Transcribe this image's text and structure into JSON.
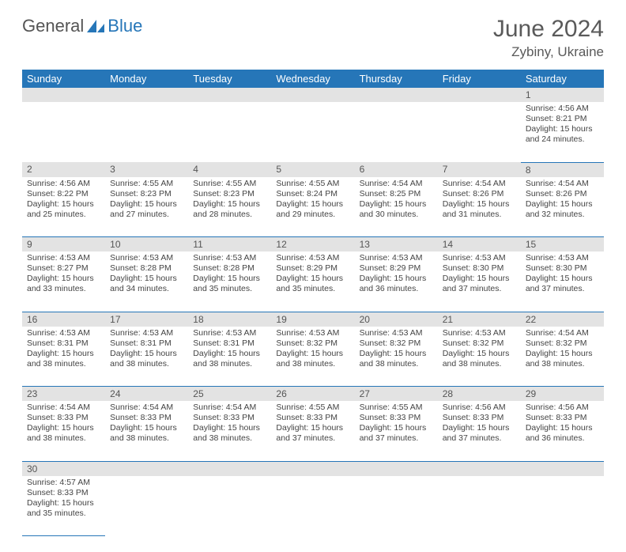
{
  "logo": {
    "general": "General",
    "blue": "Blue"
  },
  "title": "June 2024",
  "location": "Zybiny, Ukraine",
  "dayHeaders": [
    "Sunday",
    "Monday",
    "Tuesday",
    "Wednesday",
    "Thursday",
    "Friday",
    "Saturday"
  ],
  "colors": {
    "headerBg": "#2676b8",
    "headerText": "#ffffff",
    "dayRowBg": "#e3e3e3",
    "borderColor": "#2676b8",
    "titleColor": "#5a5a5a",
    "bodyText": "#444444"
  },
  "weeks": [
    [
      {
        "n": "",
        "sr": "",
        "ss": "",
        "dl": ""
      },
      {
        "n": "",
        "sr": "",
        "ss": "",
        "dl": ""
      },
      {
        "n": "",
        "sr": "",
        "ss": "",
        "dl": ""
      },
      {
        "n": "",
        "sr": "",
        "ss": "",
        "dl": ""
      },
      {
        "n": "",
        "sr": "",
        "ss": "",
        "dl": ""
      },
      {
        "n": "",
        "sr": "",
        "ss": "",
        "dl": ""
      },
      {
        "n": "1",
        "sr": "4:56 AM",
        "ss": "8:21 PM",
        "dl": "15 hours and 24 minutes."
      }
    ],
    [
      {
        "n": "2",
        "sr": "4:56 AM",
        "ss": "8:22 PM",
        "dl": "15 hours and 25 minutes."
      },
      {
        "n": "3",
        "sr": "4:55 AM",
        "ss": "8:23 PM",
        "dl": "15 hours and 27 minutes."
      },
      {
        "n": "4",
        "sr": "4:55 AM",
        "ss": "8:23 PM",
        "dl": "15 hours and 28 minutes."
      },
      {
        "n": "5",
        "sr": "4:55 AM",
        "ss": "8:24 PM",
        "dl": "15 hours and 29 minutes."
      },
      {
        "n": "6",
        "sr": "4:54 AM",
        "ss": "8:25 PM",
        "dl": "15 hours and 30 minutes."
      },
      {
        "n": "7",
        "sr": "4:54 AM",
        "ss": "8:26 PM",
        "dl": "15 hours and 31 minutes."
      },
      {
        "n": "8",
        "sr": "4:54 AM",
        "ss": "8:26 PM",
        "dl": "15 hours and 32 minutes."
      }
    ],
    [
      {
        "n": "9",
        "sr": "4:53 AM",
        "ss": "8:27 PM",
        "dl": "15 hours and 33 minutes."
      },
      {
        "n": "10",
        "sr": "4:53 AM",
        "ss": "8:28 PM",
        "dl": "15 hours and 34 minutes."
      },
      {
        "n": "11",
        "sr": "4:53 AM",
        "ss": "8:28 PM",
        "dl": "15 hours and 35 minutes."
      },
      {
        "n": "12",
        "sr": "4:53 AM",
        "ss": "8:29 PM",
        "dl": "15 hours and 35 minutes."
      },
      {
        "n": "13",
        "sr": "4:53 AM",
        "ss": "8:29 PM",
        "dl": "15 hours and 36 minutes."
      },
      {
        "n": "14",
        "sr": "4:53 AM",
        "ss": "8:30 PM",
        "dl": "15 hours and 37 minutes."
      },
      {
        "n": "15",
        "sr": "4:53 AM",
        "ss": "8:30 PM",
        "dl": "15 hours and 37 minutes."
      }
    ],
    [
      {
        "n": "16",
        "sr": "4:53 AM",
        "ss": "8:31 PM",
        "dl": "15 hours and 38 minutes."
      },
      {
        "n": "17",
        "sr": "4:53 AM",
        "ss": "8:31 PM",
        "dl": "15 hours and 38 minutes."
      },
      {
        "n": "18",
        "sr": "4:53 AM",
        "ss": "8:31 PM",
        "dl": "15 hours and 38 minutes."
      },
      {
        "n": "19",
        "sr": "4:53 AM",
        "ss": "8:32 PM",
        "dl": "15 hours and 38 minutes."
      },
      {
        "n": "20",
        "sr": "4:53 AM",
        "ss": "8:32 PM",
        "dl": "15 hours and 38 minutes."
      },
      {
        "n": "21",
        "sr": "4:53 AM",
        "ss": "8:32 PM",
        "dl": "15 hours and 38 minutes."
      },
      {
        "n": "22",
        "sr": "4:54 AM",
        "ss": "8:32 PM",
        "dl": "15 hours and 38 minutes."
      }
    ],
    [
      {
        "n": "23",
        "sr": "4:54 AM",
        "ss": "8:33 PM",
        "dl": "15 hours and 38 minutes."
      },
      {
        "n": "24",
        "sr": "4:54 AM",
        "ss": "8:33 PM",
        "dl": "15 hours and 38 minutes."
      },
      {
        "n": "25",
        "sr": "4:54 AM",
        "ss": "8:33 PM",
        "dl": "15 hours and 38 minutes."
      },
      {
        "n": "26",
        "sr": "4:55 AM",
        "ss": "8:33 PM",
        "dl": "15 hours and 37 minutes."
      },
      {
        "n": "27",
        "sr": "4:55 AM",
        "ss": "8:33 PM",
        "dl": "15 hours and 37 minutes."
      },
      {
        "n": "28",
        "sr": "4:56 AM",
        "ss": "8:33 PM",
        "dl": "15 hours and 37 minutes."
      },
      {
        "n": "29",
        "sr": "4:56 AM",
        "ss": "8:33 PM",
        "dl": "15 hours and 36 minutes."
      }
    ],
    [
      {
        "n": "30",
        "sr": "4:57 AM",
        "ss": "8:33 PM",
        "dl": "15 hours and 35 minutes."
      },
      {
        "n": "",
        "sr": "",
        "ss": "",
        "dl": ""
      },
      {
        "n": "",
        "sr": "",
        "ss": "",
        "dl": ""
      },
      {
        "n": "",
        "sr": "",
        "ss": "",
        "dl": ""
      },
      {
        "n": "",
        "sr": "",
        "ss": "",
        "dl": ""
      },
      {
        "n": "",
        "sr": "",
        "ss": "",
        "dl": ""
      },
      {
        "n": "",
        "sr": "",
        "ss": "",
        "dl": ""
      }
    ]
  ],
  "labels": {
    "sunrise": "Sunrise: ",
    "sunset": "Sunset: ",
    "daylight": "Daylight: "
  }
}
